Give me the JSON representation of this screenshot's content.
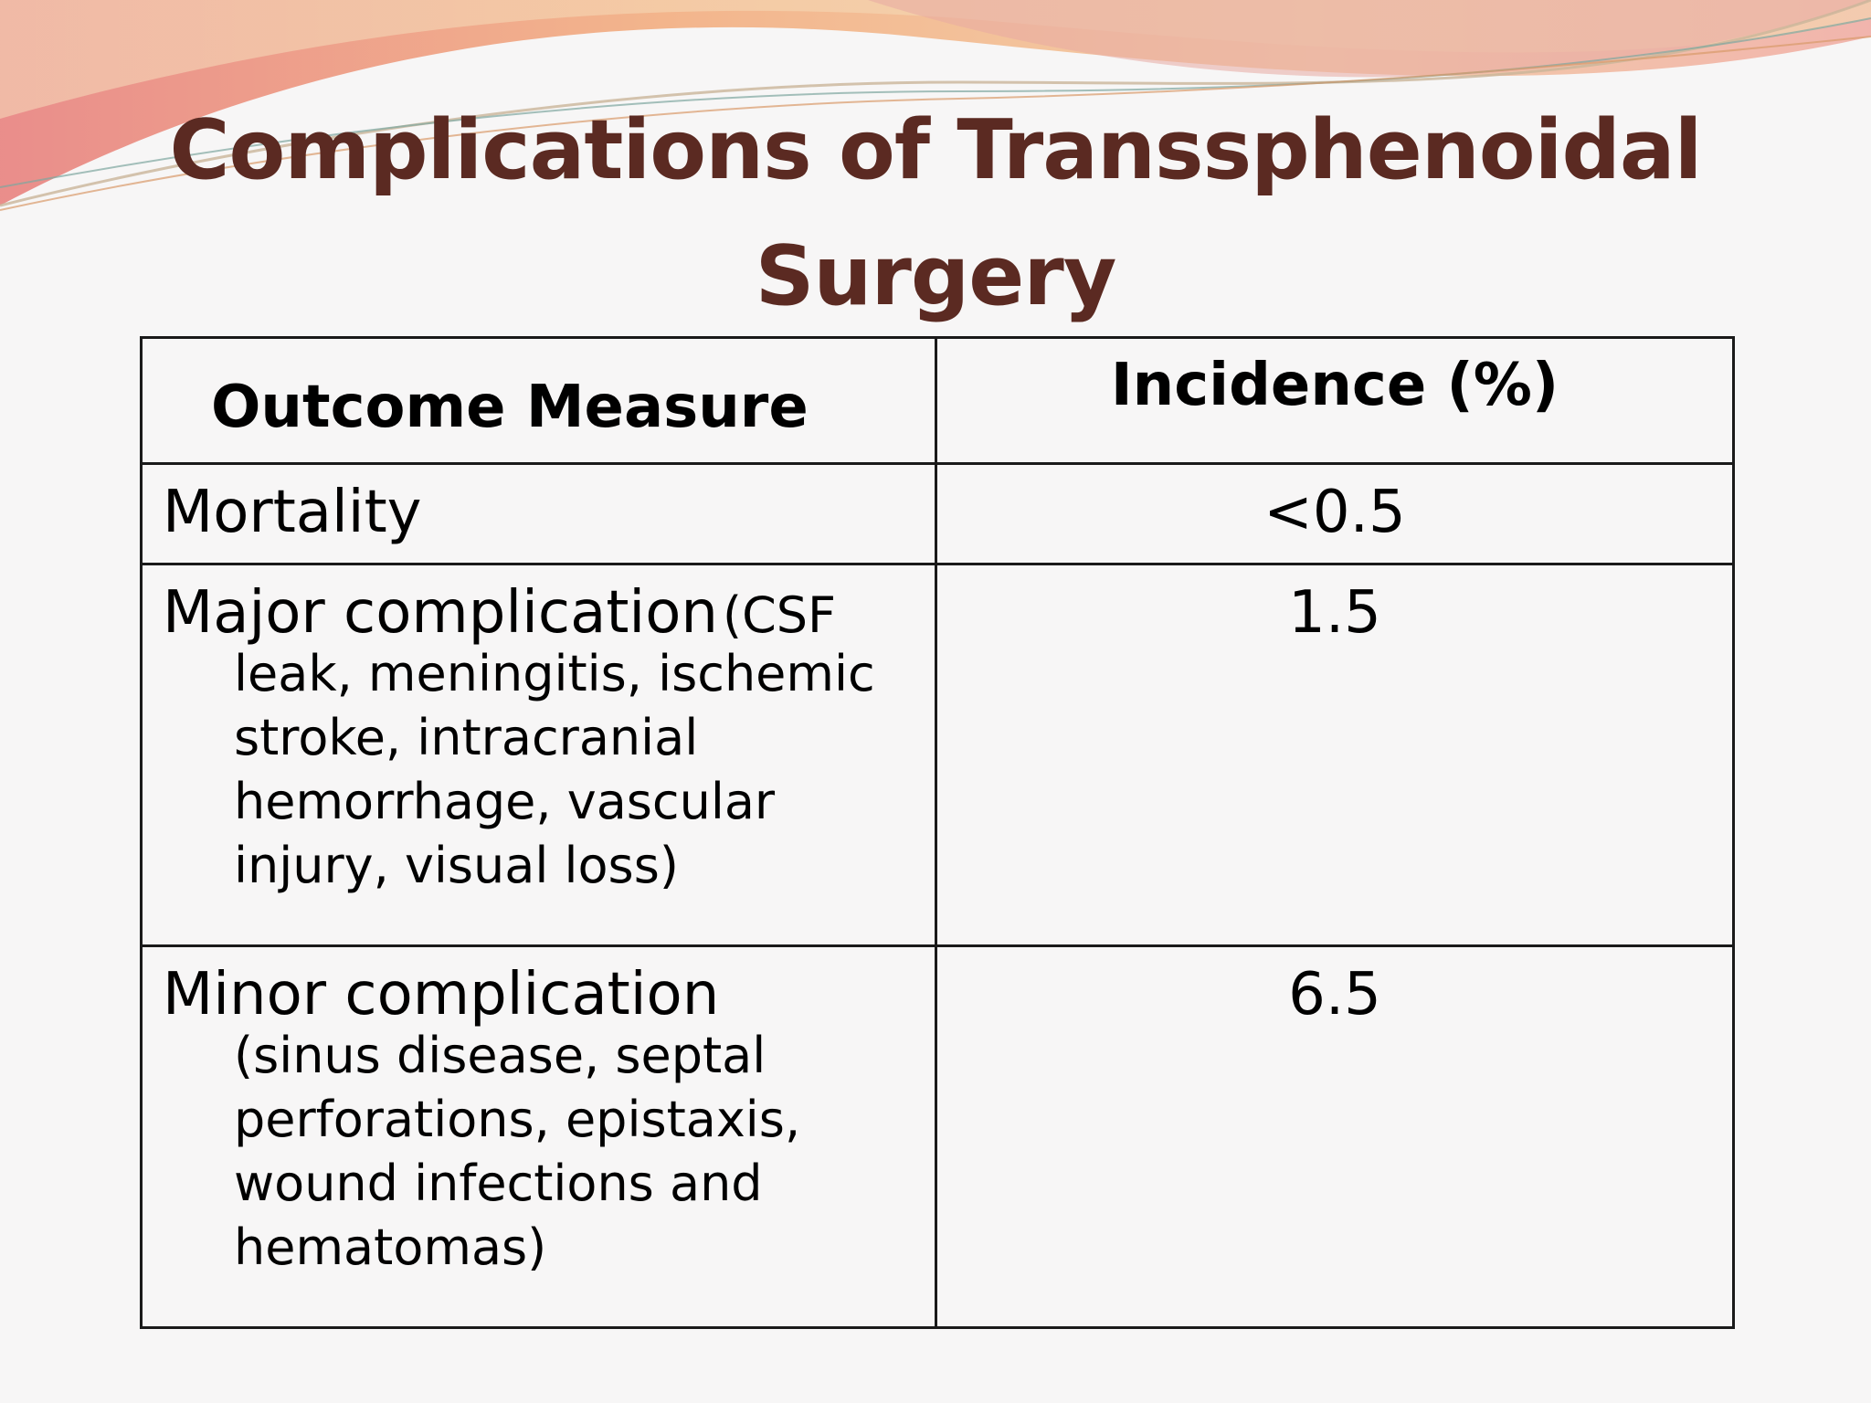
{
  "title": {
    "line1": "Complications of Transsphenoidal",
    "line2": "Surgery"
  },
  "table": {
    "headers": {
      "outcome": "Outcome Measure",
      "incidence": "Incidence (%)"
    },
    "rows": [
      {
        "outcome": "Mortality",
        "value": "<0.5"
      },
      {
        "outcome": "Major complication",
        "detail_first": "(CSF",
        "detail_rest": "leak, meningitis, ischemic stroke, intracranial hemorrhage, vascular injury, visual loss)",
        "value": "1.5"
      },
      {
        "outcome": "Minor complication",
        "detail_rest": "(sinus disease, septal perforations, epistaxis, wound infections and hematomas)",
        "value": "6.5"
      }
    ]
  },
  "colors": {
    "title": "#5b2a22",
    "background": "#f7f6f6",
    "wave_orange": "#f2a96e",
    "wave_pink": "#e8a0a0"
  }
}
